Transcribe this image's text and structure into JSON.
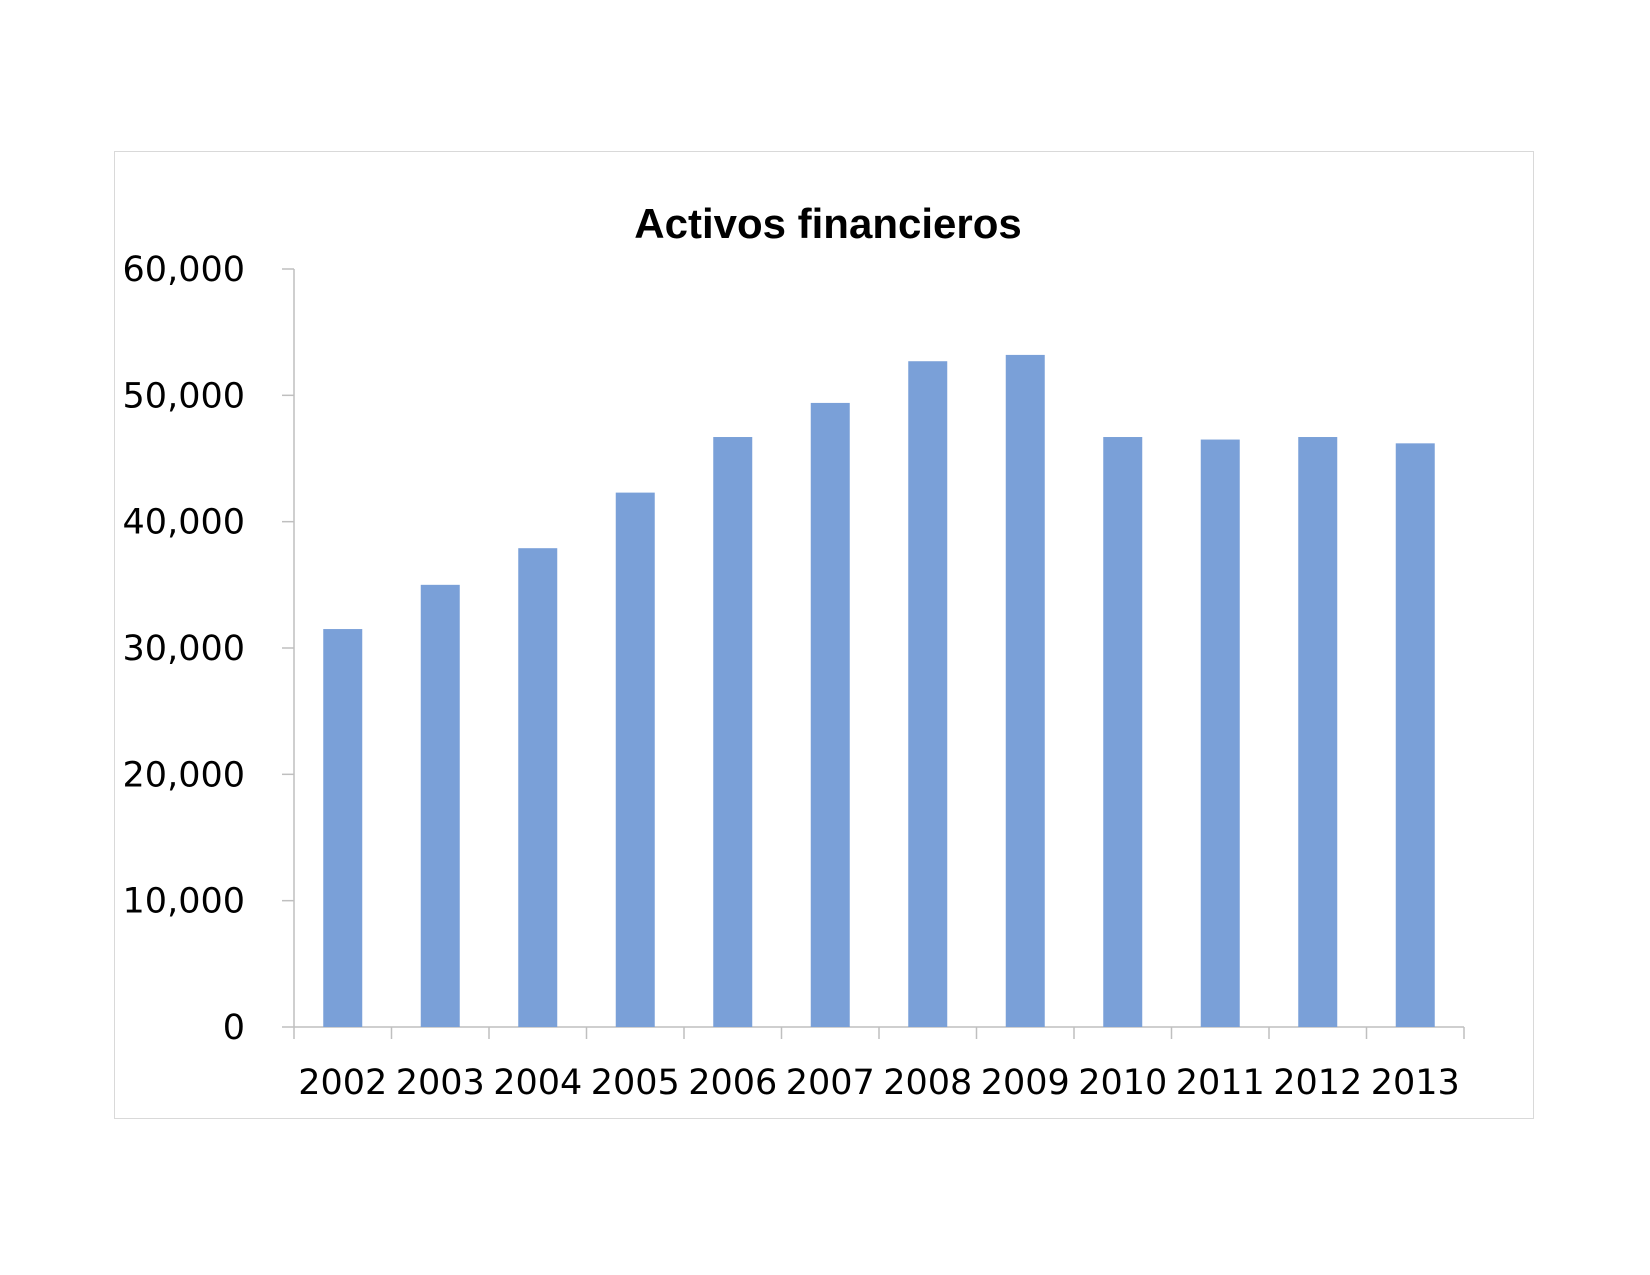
{
  "chart_data": {
    "type": "bar",
    "title": "Activos financieros",
    "xlabel": "",
    "ylabel": "",
    "categories": [
      "2002",
      "2003",
      "2004",
      "2005",
      "2006",
      "2007",
      "2008",
      "2009",
      "2010",
      "2011",
      "2012",
      "2013"
    ],
    "values": [
      31500,
      35000,
      37900,
      42300,
      46700,
      49400,
      52700,
      53200,
      46700,
      46500,
      46700,
      46200
    ],
    "ylim": [
      0,
      60000
    ],
    "yticks": [
      "0",
      "10,000",
      "20,000",
      "30,000",
      "40,000",
      "50,000",
      "60,000"
    ],
    "grid": false,
    "legend": "none",
    "bar_color": "#7aa0d8"
  }
}
